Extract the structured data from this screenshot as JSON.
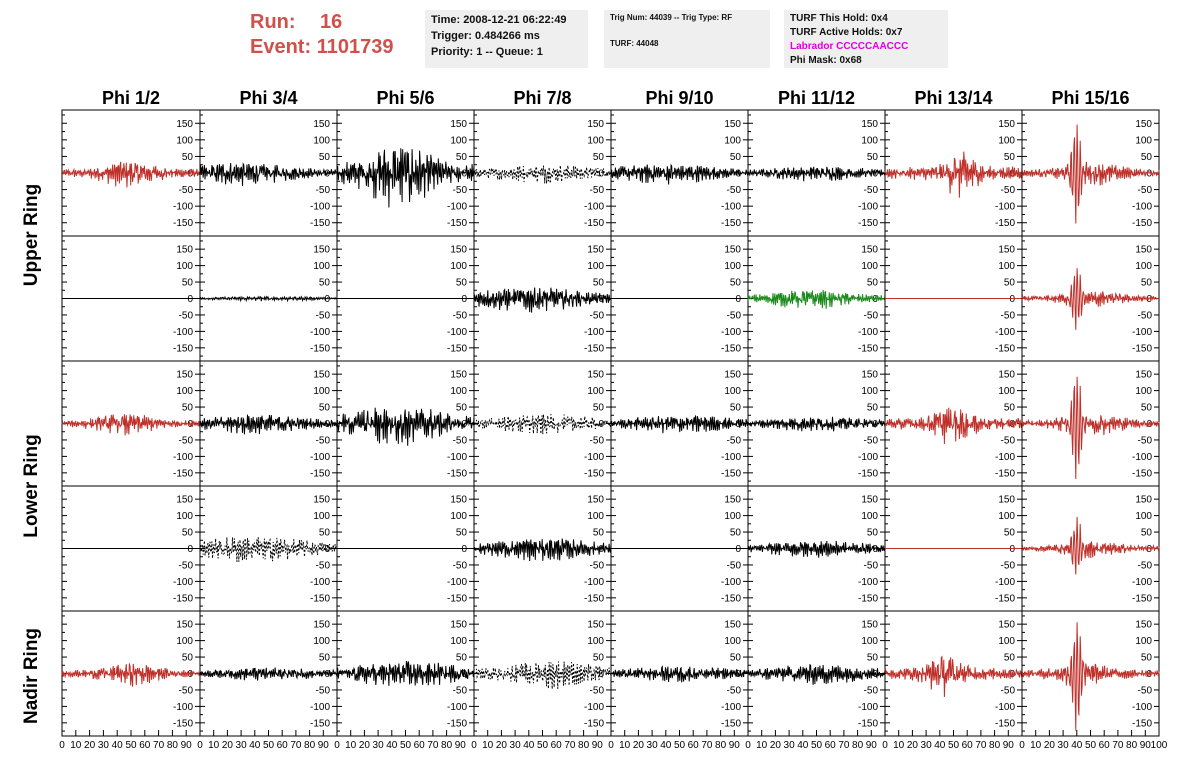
{
  "header": {
    "run_label": "Run:",
    "run_value": "16",
    "event_label": "Event:",
    "event_value": "1101739",
    "time": "Time: 2008-12-21 06:22:49",
    "trigger": "Trigger: 0.484266 ms",
    "priority": "Priority: 1 -- Queue: 1",
    "trig_num": "Trig Num: 44039 -- Trig Type: RF",
    "turf": "TURF: 44048",
    "turf_this_hold": "TURF This Hold: 0x4",
    "turf_active_holds": "TURF Active Holds: 0x7",
    "labrador": "Labrador CCCCCAACCC",
    "phi_mask": "Phi Mask: 0x68"
  },
  "colors": {
    "red": "#c0302a",
    "black": "#000000",
    "green": "#1a8a1a",
    "header": "#d0504a",
    "magenta": "#e000e0"
  },
  "chart_data": {
    "type": "line",
    "columns": [
      "Phi 1/2",
      "Phi 3/4",
      "Phi 5/6",
      "Phi 7/8",
      "Phi 9/10",
      "Phi 11/12",
      "Phi 13/14",
      "Phi 15/16"
    ],
    "rows": [
      "Upper Ring",
      "Upper Ring",
      "Lower Ring",
      "Lower Ring",
      "Nadir Ring"
    ],
    "row_labels": [
      "Upper Ring",
      "Lower Ring",
      "Nadir Ring"
    ],
    "ylim": [
      -190,
      190
    ],
    "y_ticks": [
      -150,
      -100,
      -50,
      0,
      50,
      100,
      150
    ],
    "xlim": [
      0,
      100
    ],
    "x_tick_labels": [
      "0",
      "10",
      "20",
      "30",
      "40",
      "50",
      "60",
      "70",
      "80",
      "90",
      "100"
    ],
    "panels": [
      [
        {
          "color": "red",
          "style": "solid",
          "amp": 30,
          "center": 0.5,
          "width": 0.45,
          "spike": 0
        },
        {
          "color": "black",
          "style": "solid",
          "amp": 25,
          "center": 0.3,
          "width": 0.8,
          "spike": 0
        },
        {
          "color": "black",
          "style": "solid",
          "amp": 70,
          "center": 0.45,
          "width": 0.5,
          "spike": 0
        },
        {
          "color": "black",
          "style": "dashed",
          "amp": 20,
          "center": 0.5,
          "width": 0.8,
          "spike": 0
        },
        {
          "color": "black",
          "style": "solid",
          "amp": 22,
          "center": 0.4,
          "width": 0.8,
          "spike": 0
        },
        {
          "color": "black",
          "style": "solid",
          "amp": 16,
          "center": 0.5,
          "width": 0.8,
          "spike": 0
        },
        {
          "color": "red",
          "style": "solid",
          "amp": 50,
          "center": 0.55,
          "width": 0.25,
          "spike": 0
        },
        {
          "color": "red",
          "style": "solid",
          "amp": 25,
          "center": 0.5,
          "width": 0.5,
          "spike": 160
        }
      ],
      [
        {
          "color": "black",
          "style": "flat",
          "amp": 0,
          "center": 0.5,
          "width": 0.5,
          "spike": 0
        },
        {
          "color": "black",
          "style": "solid",
          "amp": 5,
          "center": 0.5,
          "width": 0.8,
          "spike": 0
        },
        {
          "color": "black",
          "style": "flat",
          "amp": 0,
          "center": 0.5,
          "width": 0.5,
          "spike": 0
        },
        {
          "color": "black",
          "style": "solid",
          "amp": 28,
          "center": 0.4,
          "width": 0.8,
          "spike": 0
        },
        {
          "color": "black",
          "style": "flat",
          "amp": 0,
          "center": 0.5,
          "width": 0.5,
          "spike": 0
        },
        {
          "color": "green",
          "style": "solid",
          "amp": 22,
          "center": 0.45,
          "width": 0.6,
          "spike": 0
        },
        {
          "color": "red",
          "style": "flat",
          "amp": 0,
          "center": 0.5,
          "width": 0.5,
          "spike": 0
        },
        {
          "color": "red",
          "style": "solid",
          "amp": 18,
          "center": 0.5,
          "width": 0.5,
          "spike": 110
        }
      ],
      [
        {
          "color": "red",
          "style": "solid",
          "amp": 25,
          "center": 0.45,
          "width": 0.45,
          "spike": 0
        },
        {
          "color": "black",
          "style": "solid",
          "amp": 22,
          "center": 0.4,
          "width": 0.8,
          "spike": 0
        },
        {
          "color": "black",
          "style": "solid",
          "amp": 45,
          "center": 0.45,
          "width": 0.7,
          "spike": 0
        },
        {
          "color": "black",
          "style": "dashed",
          "amp": 22,
          "center": 0.5,
          "width": 0.8,
          "spike": 0
        },
        {
          "color": "black",
          "style": "solid",
          "amp": 20,
          "center": 0.5,
          "width": 0.8,
          "spike": 0
        },
        {
          "color": "black",
          "style": "solid",
          "amp": 16,
          "center": 0.5,
          "width": 0.8,
          "spike": 0
        },
        {
          "color": "red",
          "style": "solid",
          "amp": 45,
          "center": 0.5,
          "width": 0.3,
          "spike": 0
        },
        {
          "color": "red",
          "style": "solid",
          "amp": 25,
          "center": 0.5,
          "width": 0.5,
          "spike": 170
        }
      ],
      [
        {
          "color": "black",
          "style": "flat",
          "amp": 0,
          "center": 0.5,
          "width": 0.5,
          "spike": 0
        },
        {
          "color": "black",
          "style": "dashed",
          "amp": 30,
          "center": 0.4,
          "width": 0.8,
          "spike": 0
        },
        {
          "color": "black",
          "style": "flat",
          "amp": 0,
          "center": 0.5,
          "width": 0.5,
          "spike": 0
        },
        {
          "color": "black",
          "style": "solid",
          "amp": 25,
          "center": 0.5,
          "width": 0.8,
          "spike": 0
        },
        {
          "color": "black",
          "style": "flat",
          "amp": 0,
          "center": 0.5,
          "width": 0.5,
          "spike": 0
        },
        {
          "color": "black",
          "style": "solid",
          "amp": 18,
          "center": 0.5,
          "width": 0.8,
          "spike": 0
        },
        {
          "color": "red",
          "style": "flat",
          "amp": 0,
          "center": 0.5,
          "width": 0.5,
          "spike": 0
        },
        {
          "color": "red",
          "style": "solid",
          "amp": 18,
          "center": 0.5,
          "width": 0.5,
          "spike": 90
        }
      ],
      [
        {
          "color": "red",
          "style": "solid",
          "amp": 25,
          "center": 0.5,
          "width": 0.45,
          "spike": 0
        },
        {
          "color": "black",
          "style": "solid",
          "amp": 15,
          "center": 0.5,
          "width": 0.8,
          "spike": 0
        },
        {
          "color": "black",
          "style": "solid",
          "amp": 30,
          "center": 0.5,
          "width": 0.8,
          "spike": 0
        },
        {
          "color": "black",
          "style": "dashed",
          "amp": 30,
          "center": 0.55,
          "width": 0.7,
          "spike": 0
        },
        {
          "color": "black",
          "style": "solid",
          "amp": 18,
          "center": 0.5,
          "width": 0.8,
          "spike": 0
        },
        {
          "color": "black",
          "style": "solid",
          "amp": 22,
          "center": 0.5,
          "width": 0.8,
          "spike": 0
        },
        {
          "color": "red",
          "style": "solid",
          "amp": 45,
          "center": 0.45,
          "width": 0.3,
          "spike": 0
        },
        {
          "color": "red",
          "style": "solid",
          "amp": 25,
          "center": 0.45,
          "width": 0.5,
          "spike": 180
        }
      ]
    ]
  }
}
